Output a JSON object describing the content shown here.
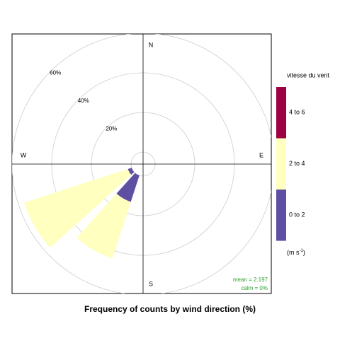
{
  "chart_data": {
    "type": "windrose",
    "title": "Frequency of counts by wind direction (%)",
    "compass": [
      "N",
      "E",
      "S",
      "W"
    ],
    "directions": [
      210,
      240
    ],
    "series": [
      {
        "name": "0 to 2",
        "color": "#5e4fa2",
        "values": [
          14,
          2
        ]
      },
      {
        "name": "2 to 4",
        "color": "#ffffbf",
        "values": [
          30,
          55
        ]
      },
      {
        "name": "4 to 6",
        "color": "#9e0142",
        "values": [
          0,
          0
        ]
      }
    ],
    "rlim": [
      0,
      60
    ],
    "rticks": [
      {
        "value": 20,
        "label": "20%"
      },
      {
        "value": 40,
        "label": "40%"
      },
      {
        "value": 60,
        "label": "60%"
      }
    ],
    "legend_title": "vitesse du vent",
    "units": {
      "base": "(m s",
      "sup": "-1",
      "end": ")"
    },
    "annotations": [
      "mean = 2.197",
      "calm = 0%"
    ]
  }
}
